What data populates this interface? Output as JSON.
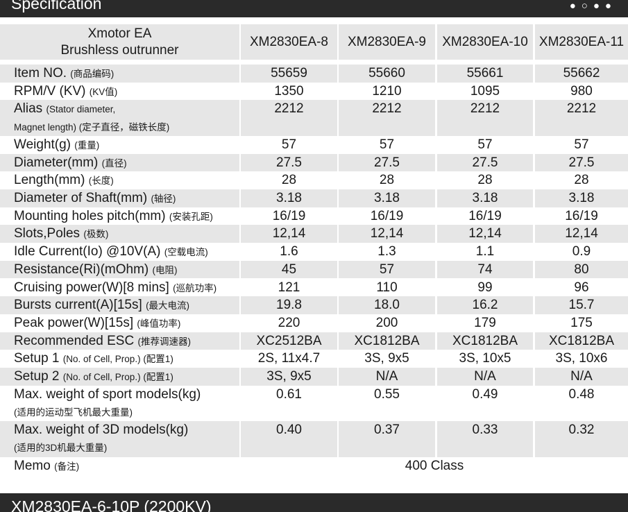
{
  "header": {
    "title": "Specification"
  },
  "table": {
    "corner": [
      "Xmotor EA",
      "Brushless outrunner"
    ],
    "columns": [
      "XM2830EA-8",
      "XM2830EA-9",
      "XM2830EA-10",
      "XM2830EA-11"
    ],
    "rows": [
      {
        "label": "Item NO.",
        "note": "(商品编码)",
        "values": [
          "55659",
          "55660",
          "55661",
          "55662"
        ]
      },
      {
        "label": "RPM/V (KV)",
        "note": "(KV值)",
        "values": [
          "1350",
          "1210",
          "1095",
          "980"
        ]
      },
      {
        "label": "Alias",
        "note": "(Stator diameter,",
        "note2": "Magnet length) (定子直径，磁铁长度)",
        "values": [
          "2212",
          "2212",
          "2212",
          "2212"
        ]
      },
      {
        "label": "Weight(g)",
        "note": "(重量)",
        "values": [
          "57",
          "57",
          "57",
          "57"
        ]
      },
      {
        "label": "Diameter(mm)",
        "note": "(直径)",
        "values": [
          "27.5",
          "27.5",
          "27.5",
          "27.5"
        ]
      },
      {
        "label": "Length(mm)",
        "note": "(长度)",
        "values": [
          "28",
          "28",
          "28",
          "28"
        ]
      },
      {
        "label": "Diameter of Shaft(mm)",
        "note": "(轴径)",
        "values": [
          "3.18",
          "3.18",
          "3.18",
          "3.18"
        ]
      },
      {
        "label": "Mounting holes pitch(mm)",
        "note": "(安装孔距)",
        "values": [
          "16/19",
          "16/19",
          "16/19",
          "16/19"
        ]
      },
      {
        "label": "Slots,Poles",
        "note": "(极数)",
        "values": [
          "12,14",
          "12,14",
          "12,14",
          "12,14"
        ]
      },
      {
        "label": "Idle Current(Io) @10V(A)",
        "note": "(空载电流)",
        "values": [
          "1.6",
          "1.3",
          "1.1",
          "0.9"
        ]
      },
      {
        "label": "Resistance(Ri)(mOhm)",
        "note": "(电阻)",
        "values": [
          "45",
          "57",
          "74",
          "80"
        ]
      },
      {
        "label": "Cruising power(W)[8 mins]",
        "note": "(巡航功率)",
        "values": [
          "121",
          "110",
          "99",
          "96"
        ]
      },
      {
        "label": "Bursts current(A)[15s]",
        "note": "(最大电流)",
        "values": [
          "19.8",
          "18.0",
          "16.2",
          "15.7"
        ]
      },
      {
        "label": "Peak power(W)[15s]",
        "note": "(峰值功率)",
        "values": [
          "220",
          "200",
          "179",
          "175"
        ]
      },
      {
        "label": "Recommended ESC",
        "note": "(推荐调速器)",
        "values": [
          "XC2512BA",
          "XC1812BA",
          "XC1812BA",
          "XC1812BA"
        ]
      },
      {
        "label": "Setup 1",
        "note": "(No. of Cell, Prop.) (配置1)",
        "values": [
          "2S, 11x4.7",
          "3S, 9x5",
          "3S, 10x5",
          "3S, 10x6"
        ]
      },
      {
        "label": "Setup 2",
        "note": "(No. of Cell, Prop.) (配置1)",
        "values": [
          "3S, 9x5",
          "N/A",
          "N/A",
          "N/A"
        ]
      },
      {
        "label": "Max. weight of sport models(kg)",
        "note2": "(适用的运动型飞机最大重量)",
        "values": [
          "0.61",
          "0.55",
          "0.49",
          "0.48"
        ]
      },
      {
        "label": "Max. weight of 3D models(kg)",
        "note2": "(适用的3D机最大重量)",
        "values": [
          "0.40",
          "0.37",
          "0.33",
          "0.32"
        ]
      },
      {
        "label": "Memo",
        "note": "(备注)",
        "values": [
          "400 Class"
        ]
      }
    ]
  },
  "footer": {
    "title": "XM2830EA-6-10P (2200KV)"
  }
}
